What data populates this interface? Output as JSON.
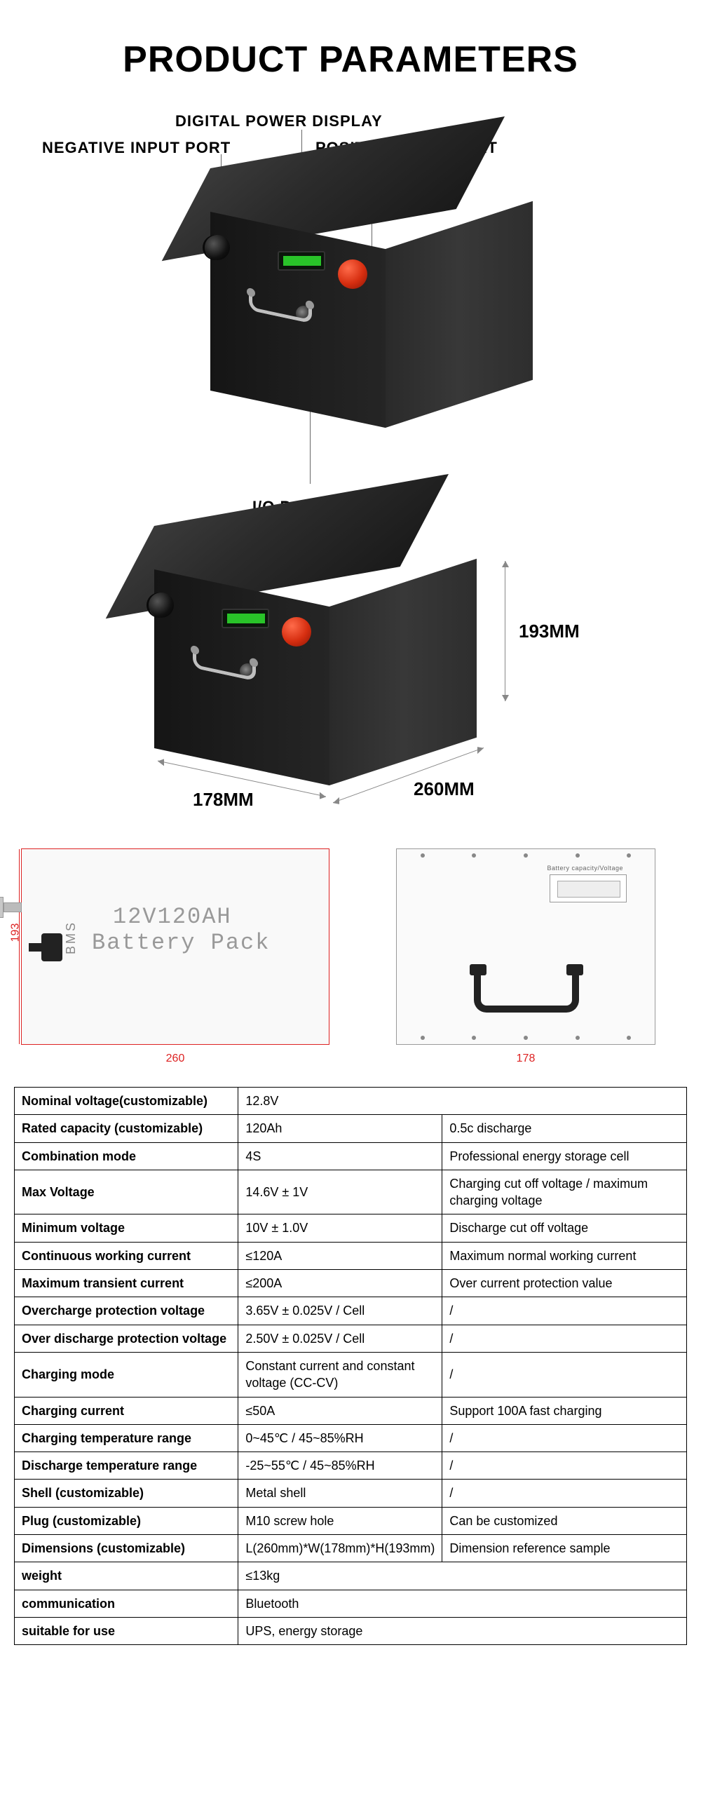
{
  "title": "PRODUCT PARAMETERS",
  "callouts": {
    "digital_power_display": "DIGITAL POWER DISPLAY",
    "negative_input_port": "NEGATIVE INPUT PORT",
    "positive_input_port": "POSITIVE INPUT PORT",
    "io_port": "I/O PORT"
  },
  "dimensions": {
    "height": "193MM",
    "depth": "260MM",
    "width": "178MM"
  },
  "engineering": {
    "left": {
      "side_dim": "193",
      "bottom_dim": "260",
      "bms_label": "BMS",
      "line1": "12V120AH",
      "line2": "Battery Pack"
    },
    "right": {
      "bottom_dim": "178",
      "display_label": "Battery capacity/Voltage"
    }
  },
  "spec_rows": [
    {
      "c1": "Nominal voltage(customizable)",
      "c2": "12.8V",
      "c3": ""
    },
    {
      "c1": "Rated capacity (customizable)",
      "c2": "120Ah",
      "c3": "0.5c discharge"
    },
    {
      "c1": "Combination mode",
      "c2": "4S",
      "c3": "Professional energy storage cell"
    },
    {
      "c1": "Max Voltage",
      "c2": "14.6V ± 1V",
      "c3": "Charging cut off voltage / maximum charging voltage"
    },
    {
      "c1": "Minimum voltage",
      "c2": "10V ± 1.0V",
      "c3": "Discharge cut off voltage"
    },
    {
      "c1": "Continuous working current",
      "c2": "≤120A",
      "c3": "Maximum normal working current"
    },
    {
      "c1": "Maximum transient current",
      "c2": "≤200A",
      "c3": "Over current protection value"
    },
    {
      "c1": "Overcharge protection voltage",
      "c2": "3.65V ± 0.025V / Cell",
      "c3": "/"
    },
    {
      "c1": "Over discharge protection voltage",
      "c2": "2.50V ± 0.025V / Cell",
      "c3": "/"
    },
    {
      "c1": "Charging mode",
      "c2": "Constant current and constant voltage (CC-CV)",
      "c3": "/"
    },
    {
      "c1": "Charging current",
      "c2": "≤50A",
      "c3": "Support 100A fast charging"
    },
    {
      "c1": "Charging temperature range",
      "c2": "0~45℃ / 45~85%RH",
      "c3": "/"
    },
    {
      "c1": "Discharge temperature range",
      "c2": "-25~55℃ / 45~85%RH",
      "c3": "/"
    },
    {
      "c1": "Shell (customizable)",
      "c2": "Metal shell",
      "c3": "/"
    },
    {
      "c1": "Plug (customizable)",
      "c2": "M10 screw hole",
      "c3": "Can be customized"
    },
    {
      "c1": "Dimensions (customizable)",
      "c2": "L(260mm)*W(178mm)*H(193mm)",
      "c3": "Dimension reference sample"
    },
    {
      "c1": "weight",
      "c2": "≤13kg",
      "c3": ""
    },
    {
      "c1": "communication",
      "c2": "Bluetooth",
      "c3": ""
    },
    {
      "c1": "suitable for use",
      "c2": "UPS, energy storage",
      "c3": ""
    }
  ],
  "colors": {
    "text": "#000000",
    "eng_dim": "#dd2222",
    "box_dark": "#1a1a1a",
    "positive_port": "#d62e10",
    "display_green": "#2ee22e"
  }
}
